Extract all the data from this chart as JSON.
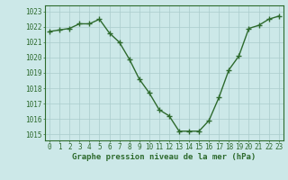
{
  "x": [
    0,
    1,
    2,
    3,
    4,
    5,
    6,
    7,
    8,
    9,
    10,
    11,
    12,
    13,
    14,
    15,
    16,
    17,
    18,
    19,
    20,
    21,
    22,
    23
  ],
  "y": [
    1021.7,
    1021.8,
    1021.9,
    1022.2,
    1022.2,
    1022.5,
    1021.6,
    1021.0,
    1019.9,
    1018.6,
    1017.7,
    1016.6,
    1016.2,
    1015.2,
    1015.2,
    1015.2,
    1015.9,
    1017.4,
    1019.2,
    1020.1,
    1021.9,
    1022.1,
    1022.5,
    1022.7
  ],
  "line_color": "#2d6a2d",
  "marker": "+",
  "markersize": 4,
  "linewidth": 1.0,
  "bg_color": "#cce8e8",
  "grid_color": "#aacccc",
  "ylabel_ticks": [
    1015,
    1016,
    1017,
    1018,
    1019,
    1020,
    1021,
    1022,
    1023
  ],
  "xlabel": "Graphe pression niveau de la mer (hPa)",
  "xlabel_fontsize": 6.5,
  "xlabel_fontweight": "bold",
  "tick_fontsize": 5.5,
  "ylim": [
    1014.6,
    1023.4
  ],
  "xlim": [
    -0.5,
    23.5
  ]
}
